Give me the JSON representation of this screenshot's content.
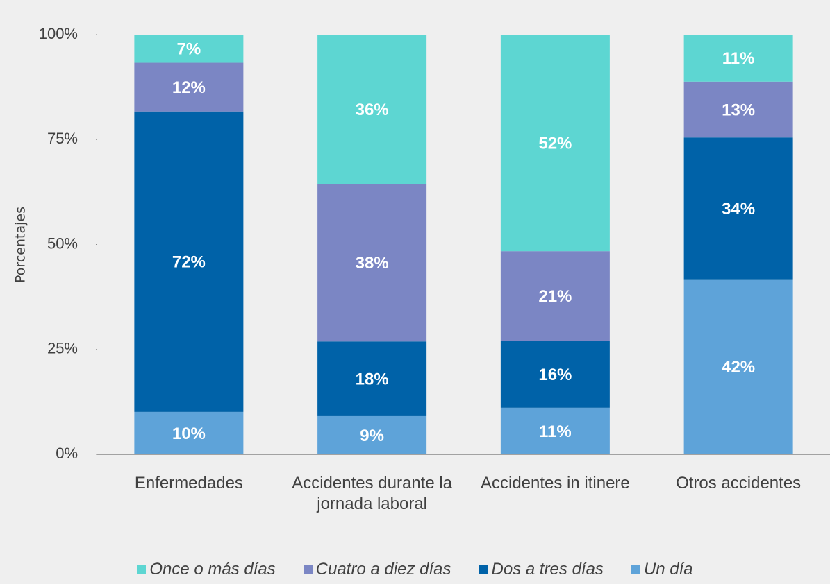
{
  "chart_data": {
    "type": "stacked_bar",
    "ylabel": "Porcentajes",
    "categories": [
      "Enfermedades",
      "Accidentes durante la jornada laboral",
      "Accidentes in itinere",
      "Otros accidentes"
    ],
    "series": [
      {
        "name": "Un día",
        "color": "#5ea3d9",
        "values": [
          10.1,
          9.1,
          11.1,
          41.7
        ],
        "value_labels": [
          "10%",
          "9%",
          "11%",
          "42%"
        ]
      },
      {
        "name": "Dos a tres días",
        "color": "#0062a8",
        "values": [
          71.6,
          17.8,
          16.0,
          33.8
        ],
        "value_labels": [
          "72%",
          "18%",
          "16%",
          "34%"
        ]
      },
      {
        "name": "Cuatro a diez días",
        "color": "#7b86c4",
        "values": [
          11.6,
          37.5,
          21.3,
          13.3
        ],
        "value_labels": [
          "12%",
          "38%",
          "21%",
          "13%"
        ]
      },
      {
        "name": "Once o más días",
        "color": "#5dd6d2",
        "values": [
          6.7,
          35.6,
          51.6,
          11.2
        ],
        "value_labels": [
          "7%",
          "36%",
          "52%",
          "11%"
        ]
      }
    ],
    "legend_order": [
      3,
      2,
      1,
      0
    ],
    "ylim": [
      0,
      100
    ],
    "yticks": [
      {
        "value": 0,
        "label": "0%"
      },
      {
        "value": 25,
        "label": "25%"
      },
      {
        "value": 50,
        "label": "50%"
      },
      {
        "value": 75,
        "label": "75%"
      },
      {
        "value": 100,
        "label": "100%"
      }
    ],
    "grid": false
  }
}
